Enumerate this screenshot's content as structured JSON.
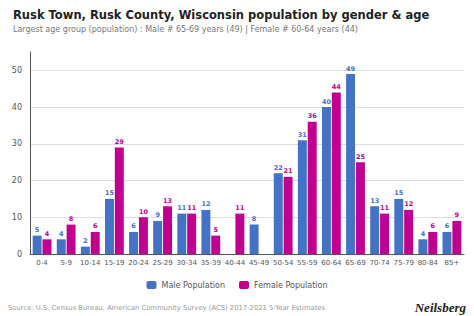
{
  "chart_data": {
    "type": "bar",
    "title": "Rusk Town, Rusk County, Wisconsin population by gender & age",
    "subtitle": "Largest age group (population) : Male # 65-69 years (49) | Female # 60-64 years (44)",
    "categories": [
      "0-4",
      "5-9",
      "10-14",
      "15-19",
      "20-24",
      "25-29",
      "30-34",
      "35-39",
      "40-44",
      "45-49",
      "50-54",
      "55-59",
      "60-64",
      "65-69",
      "70-74",
      "75-79",
      "80-84",
      "85+"
    ],
    "series": [
      {
        "name": "Male Population",
        "color": "#4472C4",
        "values": [
          5,
          4,
          2,
          15,
          6,
          9,
          11,
          12,
          0,
          8,
          22,
          31,
          40,
          49,
          13,
          15,
          4,
          6
        ],
        "value_labels": [
          "5",
          "4",
          "2",
          "15",
          "6",
          "9",
          "11",
          "12",
          null,
          "8",
          "22",
          "31",
          "40",
          "49",
          "13",
          "15",
          "4",
          "6"
        ]
      },
      {
        "name": "Female Population",
        "color": "#C0008F",
        "values": [
          4,
          8,
          6,
          29,
          10,
          13,
          11,
          5,
          11,
          0,
          21,
          36,
          44,
          25,
          11,
          12,
          6,
          9
        ],
        "value_labels": [
          "4",
          "8",
          "6",
          "29",
          "10",
          "13",
          "11",
          "5",
          "11",
          null,
          "21",
          "36",
          "44",
          "25",
          "11",
          "12",
          "6",
          "9"
        ]
      }
    ],
    "ylim": [
      0,
      55
    ],
    "yticks": [
      0,
      10,
      20,
      30,
      40,
      50
    ],
    "grid": true,
    "legend": "bottom",
    "data_labels": true,
    "annotations": [
      "Source: U.S. Census Bureau, American Community Survey (ACS) 2017-2021 5-Year Estimates",
      "Neilsberg"
    ]
  }
}
